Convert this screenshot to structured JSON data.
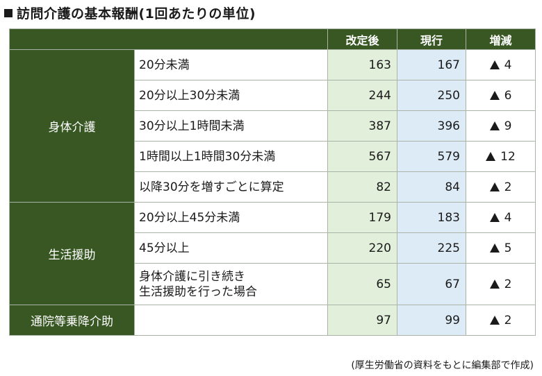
{
  "title": "訪問介護の基本報酬(1回あたりの単位)",
  "headers": {
    "new": "改定後",
    "current": "現行",
    "diff": "増減"
  },
  "rows": [
    {
      "category": "身体介護",
      "item": "20分未満",
      "new": "163",
      "current": "167",
      "diff": "4"
    },
    {
      "item": "20分以上30分未満",
      "new": "244",
      "current": "250",
      "diff": "6"
    },
    {
      "item": "30分以上1時間未満",
      "new": "387",
      "current": "396",
      "diff": "9"
    },
    {
      "item": "1時間以上1時間30分未満",
      "new": "567",
      "current": "579",
      "diff": "12"
    },
    {
      "item": "以降30分を増すごとに算定",
      "new": "82",
      "current": "84",
      "diff": "2"
    },
    {
      "category": "生活援助",
      "item": "20分以上45分未満",
      "new": "179",
      "current": "183",
      "diff": "4"
    },
    {
      "item": "45分以上",
      "new": "220",
      "current": "225",
      "diff": "5"
    },
    {
      "item_line1": "身体介護に引き続き",
      "item_line2": "生活援助を行った場合",
      "new": "65",
      "current": "67",
      "diff": "2"
    },
    {
      "category": "通院等乗降介助",
      "item": "",
      "new": "97",
      "current": "99",
      "diff": "2"
    }
  ],
  "source": "(厚生労働省の資料をもとに編集部で作成)",
  "colors": {
    "header_green": "#385723",
    "new_col": "#e2efda",
    "current_col": "#ddebf7"
  }
}
